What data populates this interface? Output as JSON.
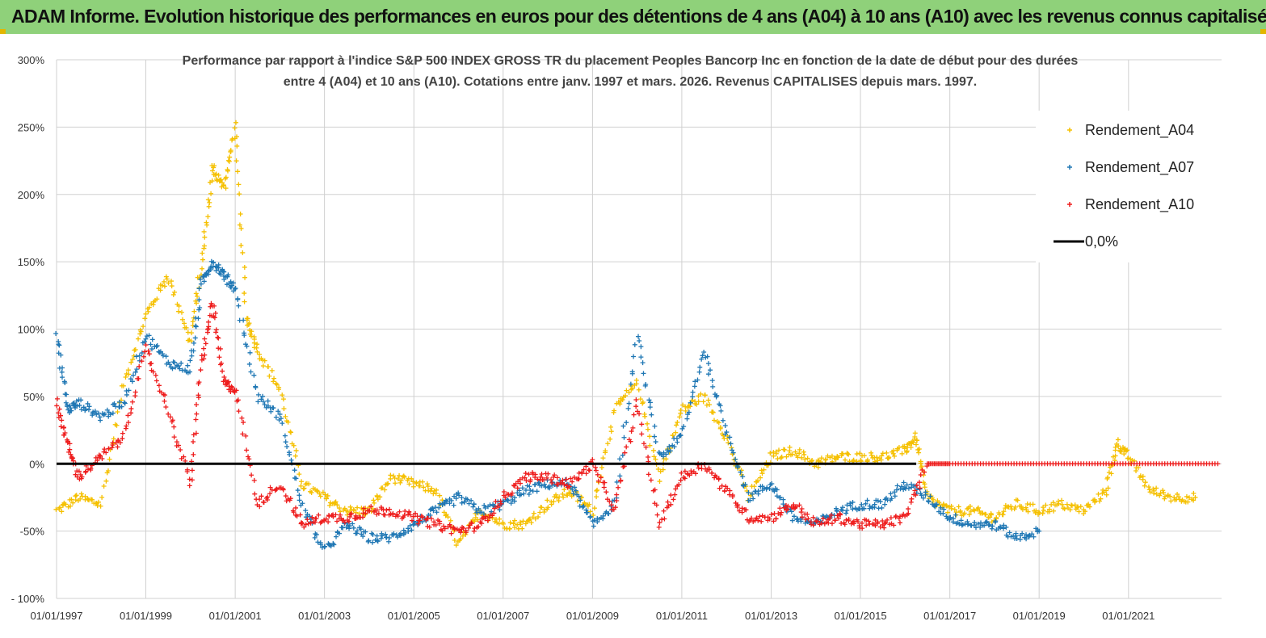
{
  "banner": {
    "title": "ADAM Informe. Evolution historique des performances en euros pour des détentions de 4 ans (A04) à 10 ans (A10) avec les revenus connus capitalisés"
  },
  "colors": {
    "banner_bg": "#8fd17a",
    "A04": "#f5c000",
    "A07": "#1f77b4",
    "A10": "#ee1c1c",
    "zero_line": "#000000"
  },
  "chart_data": {
    "type": "scatter",
    "title_lines": [
      "Performance par rapport à l'indice S&P 500 INDEX GROSS TR  du placement Peoples Bancorp Inc en fonction de la date de début pour des durées",
      "entre 4 (A04) et 10 ans (A10). Cotations entre janv. 1997 et mars. 2026. Revenus CAPITALISES depuis mars. 1997."
    ],
    "xlabel": "",
    "ylabel": "",
    "x_ticks": [
      "01/01/1997",
      "01/01/1999",
      "01/01/2001",
      "01/01/2003",
      "01/01/2005",
      "01/01/2007",
      "01/01/2009",
      "01/01/2011",
      "01/01/2013",
      "01/01/2015",
      "01/01/2017",
      "01/01/2019",
      "01/01/2021"
    ],
    "xlim": [
      "1997-01-01",
      "2023-02-01"
    ],
    "y_ticks": [
      "300%",
      "250%",
      "200%",
      "150%",
      "100%",
      "50%",
      "0%",
      "-50%",
      "- 100%"
    ],
    "y_tick_values": [
      300,
      250,
      200,
      150,
      100,
      50,
      0,
      -50,
      -100
    ],
    "ylim": [
      -100,
      300
    ],
    "grid": true,
    "legend_position": "top-right",
    "legend": [
      "Rendement_A04",
      "Rendement_A07",
      "Rendement_A10",
      "0,0%"
    ],
    "reference_line": {
      "name": "0,0%",
      "y": 0
    },
    "series": [
      {
        "name": "Rendement_A04",
        "color": "#f5c000",
        "x": [
          "1997-01",
          "1997-07",
          "1998-01",
          "1998-07",
          "1999-01",
          "1999-07",
          "2000-01",
          "2000-04",
          "2000-07",
          "2000-10",
          "2001-01",
          "2001-04",
          "2001-07",
          "2002-01",
          "2002-07",
          "2003-01",
          "2003-07",
          "2004-01",
          "2004-07",
          "2005-01",
          "2005-07",
          "2006-01",
          "2006-07",
          "2007-01",
          "2007-07",
          "2008-01",
          "2008-07",
          "2009-01",
          "2009-07",
          "2010-01",
          "2010-07",
          "2011-01",
          "2011-07",
          "2012-01",
          "2012-07",
          "2013-01",
          "2013-07",
          "2014-01",
          "2014-07",
          "2015-01",
          "2015-07",
          "2016-01",
          "2016-04",
          "2016-07",
          "2017-01",
          "2017-07",
          "2018-01",
          "2018-07",
          "2019-01",
          "2019-07",
          "2020-01",
          "2020-07",
          "2020-10",
          "2021-01",
          "2021-07",
          "2022-01",
          "2022-07"
        ],
        "y": [
          -35,
          -25,
          -30,
          60,
          110,
          140,
          90,
          150,
          220,
          205,
          250,
          110,
          85,
          55,
          -15,
          -25,
          -35,
          -35,
          -10,
          -15,
          -20,
          -60,
          -35,
          -45,
          -45,
          -30,
          -20,
          -35,
          40,
          60,
          -10,
          40,
          50,
          20,
          -25,
          5,
          10,
          0,
          5,
          5,
          5,
          10,
          20,
          -25,
          -35,
          -35,
          -40,
          -30,
          -35,
          -30,
          -35,
          -20,
          15,
          5,
          -20,
          -25,
          -25
        ]
      },
      {
        "name": "Rendement_A07",
        "color": "#1f77b4",
        "x": [
          "1997-01",
          "1997-04",
          "1997-07",
          "1998-01",
          "1998-07",
          "1999-01",
          "1999-07",
          "2000-01",
          "2000-04",
          "2000-07",
          "2000-10",
          "2001-01",
          "2001-07",
          "2002-01",
          "2002-07",
          "2003-01",
          "2003-07",
          "2004-01",
          "2004-07",
          "2005-01",
          "2005-07",
          "2006-01",
          "2006-07",
          "2007-01",
          "2007-07",
          "2008-01",
          "2008-07",
          "2009-01",
          "2009-07",
          "2010-01",
          "2010-07",
          "2011-01",
          "2011-07",
          "2012-01",
          "2012-07",
          "2013-01",
          "2013-07",
          "2014-01",
          "2014-07",
          "2015-01",
          "2015-07",
          "2016-01",
          "2016-07",
          "2017-01",
          "2017-07",
          "2018-01",
          "2018-07",
          "2019-01"
        ],
        "y": [
          95,
          40,
          45,
          35,
          45,
          95,
          75,
          70,
          135,
          150,
          140,
          130,
          50,
          35,
          -30,
          -65,
          -45,
          -55,
          -55,
          -45,
          -35,
          -25,
          -35,
          -30,
          -20,
          -15,
          -15,
          -45,
          -30,
          95,
          5,
          20,
          85,
          25,
          -25,
          -15,
          -40,
          -45,
          -35,
          -30,
          -30,
          -15,
          -25,
          -40,
          -45,
          -45,
          -55,
          -50
        ]
      },
      {
        "name": "Rendement_A10",
        "color": "#ee1c1c",
        "x": [
          "1997-01",
          "1997-04",
          "1997-07",
          "1998-01",
          "1998-07",
          "1999-01",
          "1999-07",
          "2000-01",
          "2000-04",
          "2000-07",
          "2000-10",
          "2001-01",
          "2001-07",
          "2002-01",
          "2002-07",
          "2003-01",
          "2003-07",
          "2004-01",
          "2004-07",
          "2005-01",
          "2005-07",
          "2006-01",
          "2006-07",
          "2007-01",
          "2007-07",
          "2008-01",
          "2008-07",
          "2009-01",
          "2009-07",
          "2010-01",
          "2010-07",
          "2011-01",
          "2011-07",
          "2012-01",
          "2012-07",
          "2013-01",
          "2013-07",
          "2014-01",
          "2014-07",
          "2015-01",
          "2015-07",
          "2016-01",
          "2016-07",
          "2017-01",
          "2018-01",
          "2019-01",
          "2020-01",
          "2021-01",
          "2022-01",
          "2023-01"
        ],
        "y": [
          45,
          15,
          -10,
          5,
          20,
          85,
          40,
          -15,
          75,
          120,
          60,
          55,
          -30,
          -15,
          -45,
          -40,
          -40,
          -35,
          -35,
          -40,
          -45,
          -50,
          -45,
          -25,
          -10,
          -10,
          -15,
          0,
          -35,
          45,
          -45,
          -10,
          0,
          -20,
          -40,
          -40,
          -30,
          -45,
          -40,
          -45,
          -45,
          -40,
          0,
          0,
          0,
          0,
          0,
          0,
          0,
          0
        ]
      }
    ]
  }
}
